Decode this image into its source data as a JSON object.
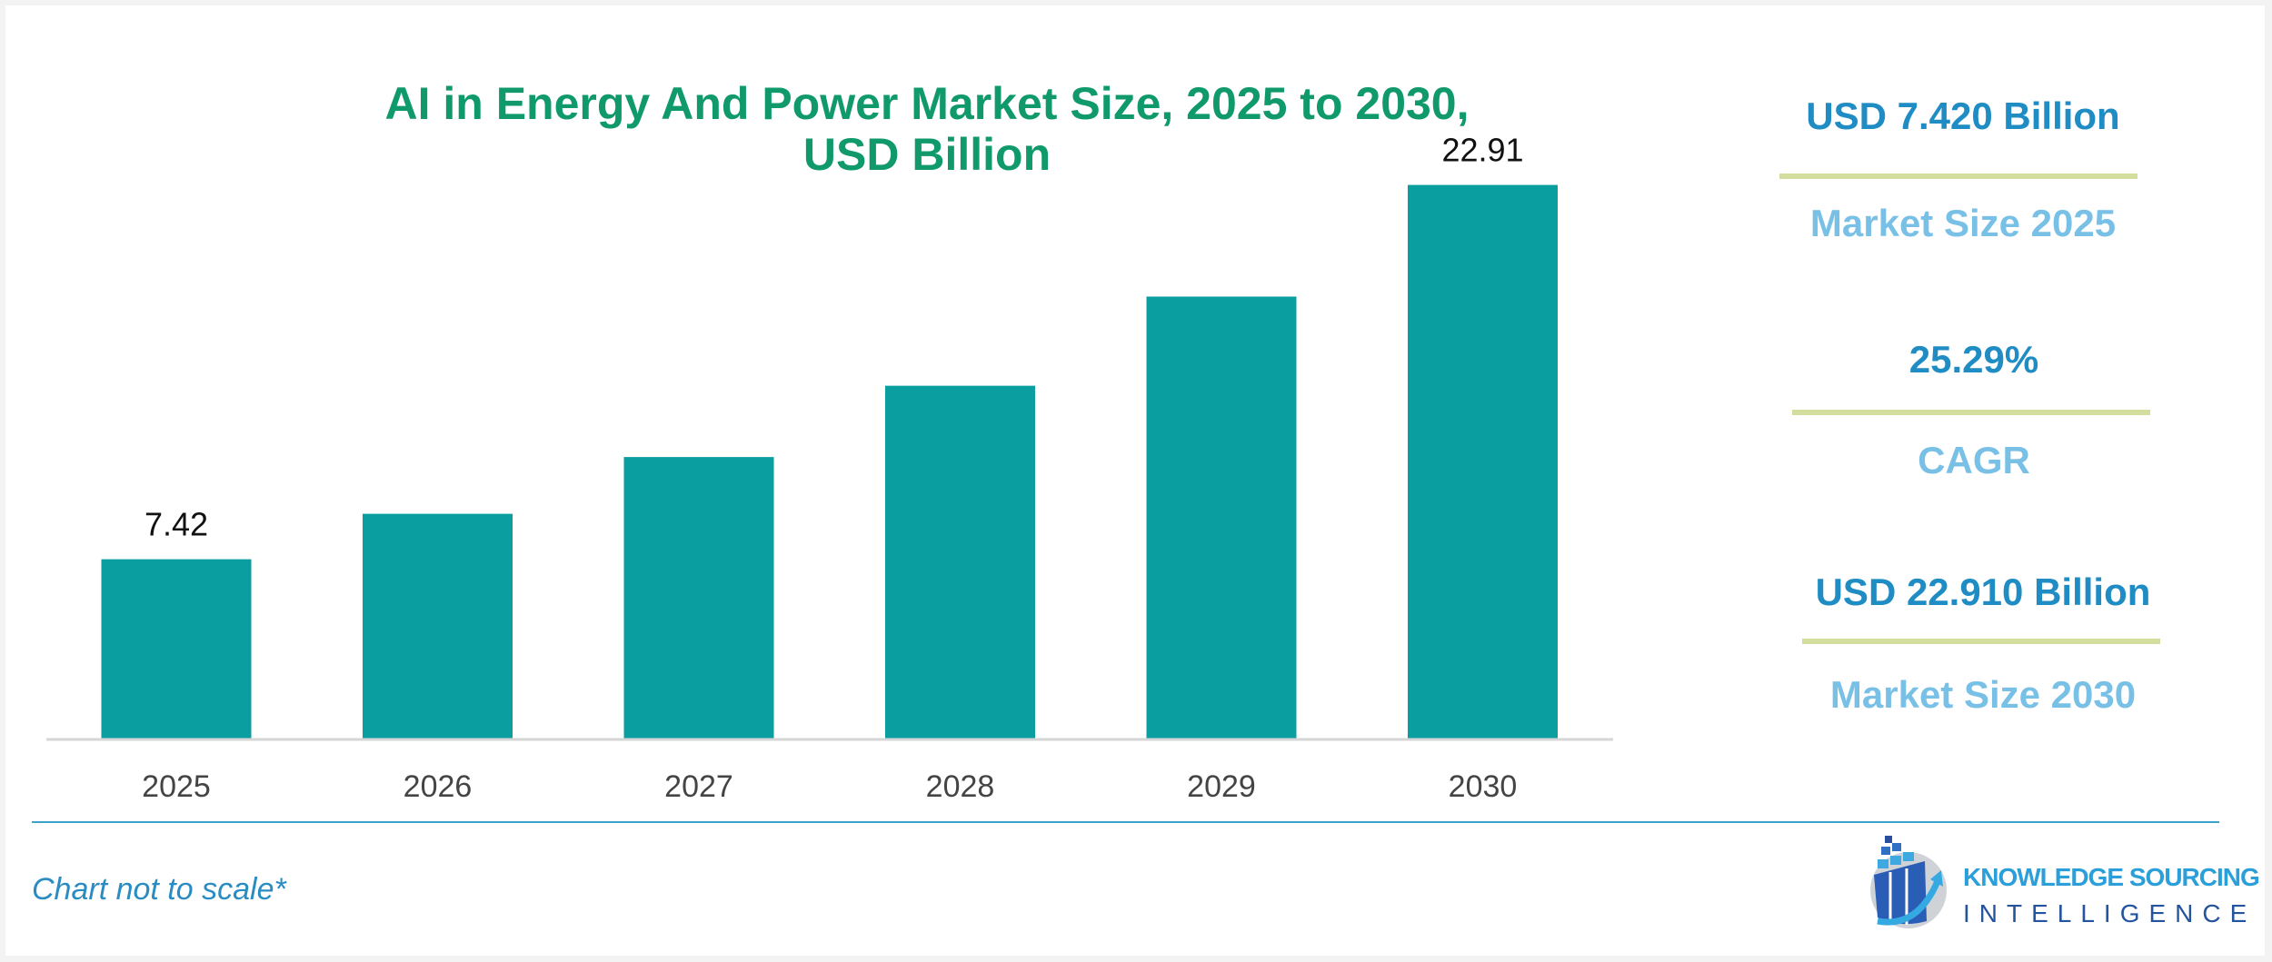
{
  "chart_data": {
    "type": "bar",
    "title": "AI in Energy And Power Market Size, 2025 to 2030, USD Billion",
    "categories": [
      "2025",
      "2026",
      "2027",
      "2028",
      "2029",
      "2030"
    ],
    "values": [
      7.42,
      9.3,
      11.65,
      14.6,
      18.29,
      22.91
    ],
    "data_labels": [
      "7.42",
      "",
      "",
      "",
      "",
      "22.91"
    ],
    "xlabel": "",
    "ylabel": "",
    "ylim": [
      0,
      23
    ],
    "grid": false,
    "bar_color": "#0a9ea0"
  },
  "title_line1": "AI in Energy And Power Market Size, 2025 to 2030,",
  "title_line2": "USD Billion",
  "kpis": [
    {
      "value": "USD 7.420 Billion",
      "label": "Market Size 2025"
    },
    {
      "value": "25.29%",
      "label": "CAGR"
    },
    {
      "value": "USD 22.910 Billion",
      "label": "Market Size 2030"
    }
  ],
  "footnote": "Chart not to scale*",
  "logo": {
    "line1": "KNOWLEDGE SOURCING",
    "line2": "INTELLIGENCE"
  },
  "colors": {
    "title": "#109a6c",
    "kpi_value": "#1f8cc4",
    "kpi_label": "#79c0e6",
    "kpi_divider": "#d3dd9d"
  }
}
